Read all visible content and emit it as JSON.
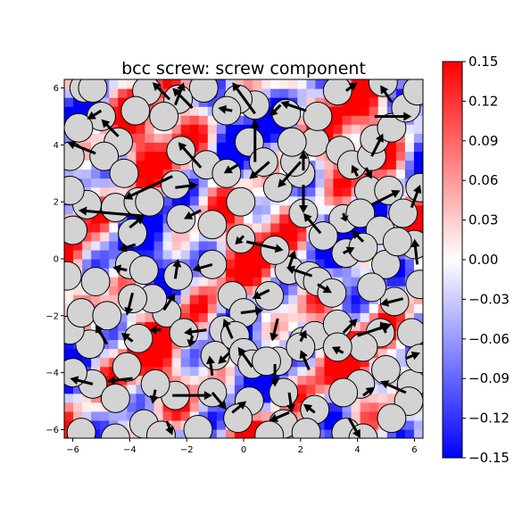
{
  "chart_data": {
    "type": "heatmap",
    "title": "bcc screw: screw component",
    "xlim": [
      -6.3,
      6.3
    ],
    "ylim": [
      -6.3,
      6.3
    ],
    "x_ticks": [
      -6,
      -4,
      -2,
      0,
      2,
      4,
      6
    ],
    "y_ticks": [
      -6,
      -4,
      -2,
      0,
      2,
      4,
      6
    ],
    "x_tick_labels": [
      "−6",
      "−4",
      "−2",
      "0",
      "2",
      "4",
      "6"
    ],
    "y_tick_labels": [
      "−6",
      "−4",
      "−2",
      "0",
      "2",
      "4",
      "6"
    ],
    "colormap": "bwr",
    "colorbar_range": [
      -0.15,
      0.15
    ],
    "colorbar_ticks": [
      0.15,
      0.12,
      0.09,
      0.06,
      0.03,
      0.0,
      -0.03,
      -0.06,
      -0.09,
      -0.12,
      -0.15
    ],
    "colorbar_tick_labels": [
      "0.15",
      "0.12",
      "0.09",
      "0.06",
      "0.03",
      "0.00",
      "−0.03",
      "−0.06",
      "−0.09",
      "−0.12",
      "−0.15"
    ],
    "atom_color": "#d3d3d3",
    "arrow_color": "#000000",
    "colors": {
      "high": "#ff0000",
      "mid": "#ffffff",
      "low": "#0000ff"
    },
    "atoms": [
      [
        -5.6,
        6.0
      ],
      [
        -5.0,
        5.0
      ],
      [
        -5.8,
        4.6
      ],
      [
        -4.4,
        4.1
      ],
      [
        -4.9,
        3.6
      ],
      [
        -4.2,
        3.0
      ],
      [
        -5.5,
        1.9
      ],
      [
        -4.5,
        1.8
      ],
      [
        -3.7,
        2.0
      ],
      [
        -3.3,
        2.0
      ],
      [
        -2.4,
        2.6
      ],
      [
        -2.2,
        1.4
      ],
      [
        -1.1,
        1.2
      ],
      [
        -2.2,
        3.8
      ],
      [
        -1.3,
        3.3
      ],
      [
        -0.6,
        3.0
      ],
      [
        0.2,
        4.1
      ],
      [
        0.7,
        3.4
      ],
      [
        -0.1,
        2.0
      ],
      [
        1.2,
        2.5
      ],
      [
        2.0,
        3.0
      ],
      [
        2.1,
        1.6
      ],
      [
        2.5,
        4.1
      ],
      [
        3.4,
        3.8
      ],
      [
        3.8,
        3.3
      ],
      [
        4.5,
        3.6
      ],
      [
        4.4,
        2.4
      ],
      [
        5.1,
        2.4
      ],
      [
        5.6,
        1.6
      ],
      [
        6.2,
        2.5
      ],
      [
        3.5,
        1.4
      ],
      [
        4.1,
        1.6
      ],
      [
        4.8,
        1.0
      ],
      [
        6.0,
        0.5
      ],
      [
        3.6,
        0.2
      ],
      [
        4.2,
        0.4
      ],
      [
        5.0,
        -0.2
      ],
      [
        6.2,
        -0.9
      ],
      [
        5.3,
        -1.5
      ],
      [
        5.9,
        -2.6
      ],
      [
        4.8,
        -2.6
      ],
      [
        4.2,
        -3.1
      ],
      [
        5.0,
        -3.9
      ],
      [
        4.1,
        -4.4
      ],
      [
        3.5,
        -4.7
      ],
      [
        2.5,
        -5.3
      ],
      [
        3.6,
        -6.1
      ],
      [
        4.2,
        -6.3
      ],
      [
        5.9,
        -4.4
      ],
      [
        5.8,
        -5.0
      ],
      [
        1.4,
        -5.8
      ],
      [
        0.2,
        -5.0
      ],
      [
        -0.2,
        -5.6
      ],
      [
        -1.1,
        -4.7
      ],
      [
        -2.4,
        -4.8
      ],
      [
        -3.1,
        -4.4
      ],
      [
        -3.5,
        -5.8
      ],
      [
        -2.9,
        -6.2
      ],
      [
        -4.5,
        -6.3
      ],
      [
        -5.7,
        -6.1
      ],
      [
        -5.3,
        -4.4
      ],
      [
        -4.1,
        -3.8
      ],
      [
        -5.4,
        -3.0
      ],
      [
        -6.1,
        -2.5
      ],
      [
        -5.7,
        -1.9
      ],
      [
        -3.7,
        -2.8
      ],
      [
        -2.7,
        -1.9
      ],
      [
        -3.2,
        -1.4
      ],
      [
        -3.9,
        -1.4
      ],
      [
        -5.2,
        -0.8
      ],
      [
        -4.0,
        -0.2
      ],
      [
        -3.5,
        -0.4
      ],
      [
        -3.9,
        0.9
      ],
      [
        -2.3,
        -0.6
      ],
      [
        -1.1,
        -0.2
      ],
      [
        -0.4,
        -1.3
      ],
      [
        0.0,
        -1.9
      ],
      [
        -0.7,
        -2.5
      ],
      [
        -2.1,
        -2.6
      ],
      [
        -1.0,
        -3.4
      ],
      [
        -0.3,
        -2.7
      ],
      [
        0.0,
        -3.3
      ],
      [
        0.9,
        -1.3
      ],
      [
        1.6,
        -0.4
      ],
      [
        1.1,
        0.3
      ],
      [
        -0.1,
        0.7
      ],
      [
        2.3,
        -0.6
      ],
      [
        2.6,
        -0.8
      ],
      [
        3.1,
        -1.2
      ],
      [
        2.1,
        -2.9
      ],
      [
        2.5,
        -2.7
      ],
      [
        3.3,
        -2.3
      ],
      [
        3.3,
        -3.1
      ],
      [
        1.2,
        -3.6
      ],
      [
        1.4,
        -4.7
      ],
      [
        2.0,
        -3.1
      ],
      [
        0.3,
        -3.7
      ],
      [
        0.8,
        -3.6
      ],
      [
        4.6,
        4.2
      ],
      [
        5.2,
        4.6
      ],
      [
        5.7,
        5.3
      ],
      [
        6.1,
        5.9
      ],
      [
        4.9,
        6.2
      ],
      [
        3.3,
        5.9
      ],
      [
        2.6,
        5.0
      ],
      [
        1.5,
        5.1
      ],
      [
        0.4,
        5.4
      ],
      [
        -0.2,
        5.6
      ],
      [
        -0.6,
        5.2
      ],
      [
        -1.4,
        6.0
      ],
      [
        -2.3,
        5.6
      ],
      [
        -2.8,
        5.0
      ],
      [
        -3.4,
        5.9
      ],
      [
        -3.8,
        5.2
      ],
      [
        -5.3,
        6.0
      ],
      [
        -6.1,
        3.6
      ],
      [
        -6.1,
        2.4
      ],
      [
        -6.0,
        1.0
      ],
      [
        -6.2,
        -0.6
      ],
      [
        -6.0,
        -4.0
      ],
      [
        -4.8,
        -2.0
      ],
      [
        -4.5,
        -4.9
      ],
      [
        -1.6,
        -6.0
      ],
      [
        0.9,
        -6.2
      ],
      [
        2.2,
        -6.1
      ],
      [
        5.2,
        -5.6
      ],
      [
        6.2,
        -3.5
      ],
      [
        5.4,
        0.6
      ],
      [
        4.5,
        -1.0
      ],
      [
        2.8,
        0.8
      ],
      [
        1.8,
        3.4
      ],
      [
        1.7,
        4.1
      ]
    ],
    "arrows": [
      [
        -3.5,
        1.5,
        -5.8,
        1.7
      ],
      [
        -2.5,
        2.9,
        -4.2,
        2.1
      ],
      [
        -5.2,
        3.7,
        -6.2,
        4.1
      ],
      [
        -4.4,
        4.3,
        -5.0,
        4.9
      ],
      [
        -2.4,
        5.4,
        -2.1,
        6.2
      ],
      [
        -2.6,
        5.6,
        -3.2,
        6.2
      ],
      [
        -1.8,
        5.3,
        -2.5,
        6.0
      ],
      [
        -0.4,
        5.2,
        -0.9,
        5.3
      ],
      [
        0.4,
        5.1,
        -0.4,
        6.2
      ],
      [
        1.3,
        5.4,
        0.9,
        5.0
      ],
      [
        2.2,
        5.2,
        1.3,
        5.5
      ],
      [
        3.6,
        5.9,
        4.0,
        6.2
      ],
      [
        4.6,
        5.0,
        5.9,
        5.0
      ],
      [
        5.2,
        5.5,
        4.8,
        6.1
      ],
      [
        0.4,
        3.4,
        0.4,
        4.9
      ],
      [
        2.0,
        3.4,
        1.2,
        2.5
      ],
      [
        2.1,
        2.6,
        2.1,
        1.6
      ],
      [
        2.1,
        3.1,
        2.1,
        3.8
      ],
      [
        0.9,
        3.4,
        0.2,
        2.8
      ],
      [
        -0.2,
        3.3,
        -0.7,
        3.0
      ],
      [
        -1.5,
        3.2,
        -2.3,
        4.1
      ],
      [
        -2.4,
        2.5,
        -1.6,
        2.6
      ],
      [
        -1.5,
        1.7,
        -2.1,
        1.4
      ],
      [
        -4.0,
        1.1,
        -3.5,
        1.5
      ],
      [
        -3.8,
        0.5,
        -4.4,
        0.3
      ],
      [
        -4.1,
        -0.4,
        -4.6,
        -0.3
      ],
      [
        -2.4,
        -0.7,
        -2.3,
        0.0
      ],
      [
        -1.1,
        -0.2,
        -1.8,
        -0.4
      ],
      [
        0.0,
        0.8,
        -0.3,
        0.5
      ],
      [
        0.1,
        0.6,
        1.4,
        0.3
      ],
      [
        1.6,
        -0.3,
        1.8,
        0.3
      ],
      [
        2.4,
        -0.6,
        1.5,
        -0.3
      ],
      [
        3.5,
        0.2,
        3.9,
        0.4
      ],
      [
        4.2,
        0.6,
        3.8,
        1.0
      ],
      [
        4.0,
        2.9,
        3.8,
        3.3
      ],
      [
        4.3,
        3.2,
        4.5,
        2.8
      ],
      [
        4.5,
        1.9,
        5.5,
        2.4
      ],
      [
        4.5,
        3.6,
        4.9,
        4.4
      ],
      [
        5.9,
        1.8,
        6.2,
        2.6
      ],
      [
        6.1,
        -0.2,
        6.0,
        0.7
      ],
      [
        5.6,
        -1.4,
        4.8,
        -1.6
      ],
      [
        5.0,
        -2.6,
        4.8,
        -2.2
      ],
      [
        4.0,
        -2.7,
        5.2,
        -2.3
      ],
      [
        3.5,
        -2.6,
        4.0,
        -2.1
      ],
      [
        3.5,
        -3.3,
        3.1,
        -3.1
      ],
      [
        2.0,
        -2.9,
        2.2,
        -2.5
      ],
      [
        1.2,
        -2.1,
        1.0,
        -2.9
      ],
      [
        0.9,
        -1.1,
        0.3,
        -1.4
      ],
      [
        -0.1,
        -1.9,
        0.7,
        -1.8
      ],
      [
        -0.4,
        -2.8,
        -0.7,
        -2.1
      ],
      [
        -1.3,
        -2.5,
        -2.1,
        -2.6
      ],
      [
        -0.5,
        -3.3,
        -0.9,
        -3.7
      ],
      [
        -1.8,
        -2.7,
        -1.9,
        -3.1
      ],
      [
        -2.8,
        -1.8,
        -2.4,
        -1.2
      ],
      [
        -2.9,
        -2.5,
        -3.3,
        -2.5
      ],
      [
        -3.9,
        -2.9,
        -4.3,
        -2.6
      ],
      [
        -3.9,
        -1.2,
        -4.1,
        -2.0
      ],
      [
        -4.8,
        -3.0,
        -5.2,
        -2.3
      ],
      [
        -5.3,
        -4.4,
        -6.1,
        -4.2
      ],
      [
        -3.9,
        -4.2,
        -4.8,
        -4.3
      ],
      [
        -3.1,
        -4.6,
        -3.2,
        -5.1
      ],
      [
        -2.5,
        -4.8,
        -1.1,
        -4.8
      ],
      [
        -1.1,
        -4.1,
        -1.2,
        -3.4
      ],
      [
        -1.1,
        -4.7,
        -0.6,
        -5.3
      ],
      [
        -2.7,
        -5.7,
        -2.5,
        -6.2
      ],
      [
        -0.4,
        -5.4,
        0.1,
        -5.0
      ],
      [
        1.6,
        -5.4,
        0.9,
        -5.7
      ],
      [
        2.5,
        -5.4,
        2.1,
        -5.1
      ],
      [
        3.7,
        -5.6,
        4.1,
        -6.3
      ],
      [
        4.2,
        -4.8,
        4.6,
        -4.5
      ],
      [
        5.7,
        -4.7,
        4.8,
        -4.3
      ],
      [
        5.7,
        -3.5,
        6.2,
        -3.3
      ],
      [
        0.3,
        -3.8,
        -0.2,
        -3.1
      ],
      [
        1.1,
        -3.7,
        1.1,
        -4.5
      ],
      [
        1.6,
        -4.7,
        1.7,
        -5.4
      ],
      [
        2.3,
        -3.9,
        2.0,
        -3.2
      ],
      [
        2.6,
        -0.9,
        3.1,
        -1.2
      ],
      [
        2.7,
        0.9,
        2.1,
        1.6
      ],
      [
        3.5,
        1.6,
        3.6,
        1.3
      ],
      [
        -5.0,
        5.2,
        -5.5,
        4.9
      ]
    ]
  }
}
